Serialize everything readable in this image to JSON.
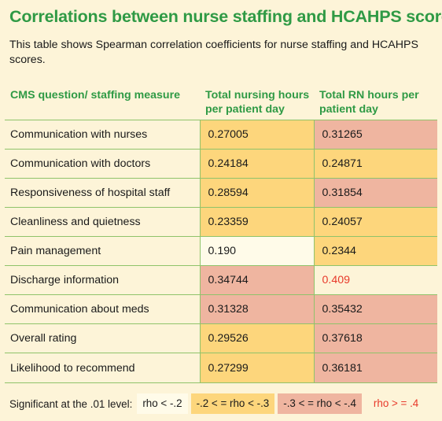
{
  "title": "Correlations between nurse staffing and HCAHPS scores",
  "subtitle": "This table shows Spearman correlation coefficients for nurse staffing and HCAHPS scores.",
  "colors": {
    "title_green": "#2f9a45",
    "bin_lt_02": "#fffbe9",
    "bin_02_03": "#fdd67c",
    "bin_03_04": "#efb5a0",
    "bin_ge_04_text": "#e8392a",
    "page_bg": "#fdf4d8"
  },
  "table": {
    "headers": [
      "CMS question/ staffing measure",
      "Total nursing hours per patient day",
      "Total RN hours per patient day"
    ],
    "rows": [
      {
        "measure": "Communication with nurses",
        "nursing": "0.27005",
        "nursing_bin": "b2",
        "rn": "0.31265",
        "rn_bin": "b3"
      },
      {
        "measure": "Communication with doctors",
        "nursing": "0.24184",
        "nursing_bin": "b2",
        "rn": "0.24871",
        "rn_bin": "b2"
      },
      {
        "measure": "Responsiveness of hospital staff",
        "nursing": "0.28594",
        "nursing_bin": "b2",
        "rn": "0.31854",
        "rn_bin": "b3"
      },
      {
        "measure": "Cleanliness and quietness",
        "nursing": "0.23359",
        "nursing_bin": "b2",
        "rn": "0.24057",
        "rn_bin": "b2"
      },
      {
        "measure": "Pain management",
        "nursing": "0.190",
        "nursing_bin": "b1",
        "rn": "0.2344",
        "rn_bin": "b2"
      },
      {
        "measure": "Discharge information",
        "nursing": "0.34744",
        "nursing_bin": "b3",
        "rn": "0.409",
        "rn_bin": "b4"
      },
      {
        "measure": "Communication about meds",
        "nursing": "0.31328",
        "nursing_bin": "b3",
        "rn": "0.35432",
        "rn_bin": "b3"
      },
      {
        "measure": "Overall rating",
        "nursing": "0.29526",
        "nursing_bin": "b2",
        "rn": "0.37618",
        "rn_bin": "b3"
      },
      {
        "measure": "Likelihood to recommend",
        "nursing": "0.27299",
        "nursing_bin": "b2",
        "rn": "0.36181",
        "rn_bin": "b3"
      }
    ]
  },
  "legend": {
    "label": "Significant at the .01 level:",
    "items": [
      "rho < -.2",
      "-.2 < = rho < -.3",
      "-.3 < = rho < -.4",
      "rho > = .4"
    ]
  }
}
